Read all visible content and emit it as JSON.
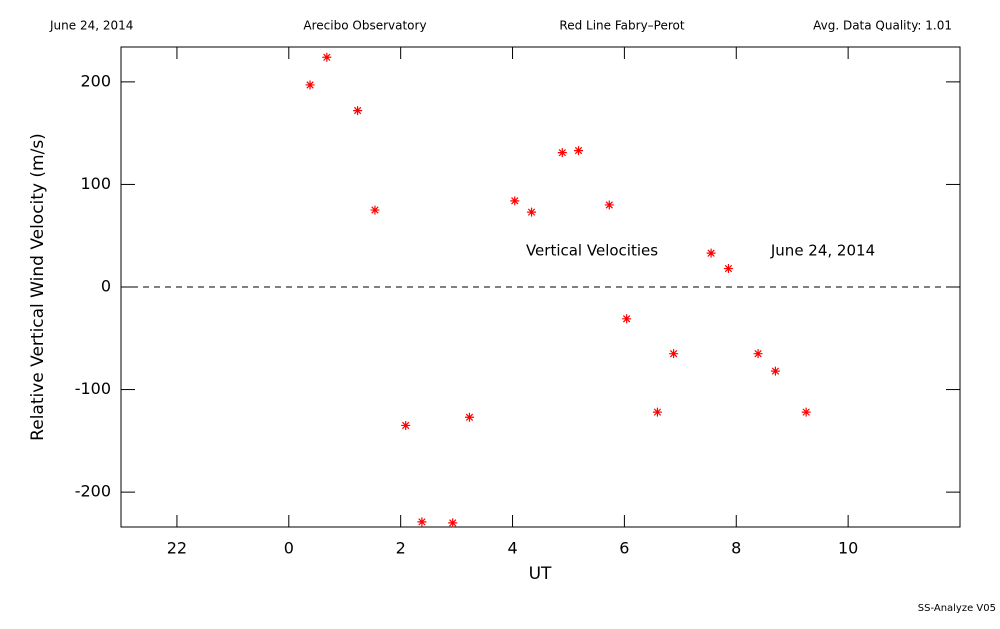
{
  "header": [
    "June 24, 2014",
    "Arecibo Observatory",
    "Red Line Fabry–Perot",
    "Avg. Data Quality: 1.01"
  ],
  "footer": "SS-Analyze V05",
  "chart_data": {
    "type": "scatter",
    "x_label": "UT",
    "y_label": "Relative Vertical Wind Velocity (m/s)",
    "annotations": [
      "Vertical Velocities",
      "June 24, 2014"
    ],
    "x": [
      0.38,
      0.68,
      1.23,
      1.54,
      2.09,
      2.38,
      2.93,
      3.23,
      4.04,
      4.34,
      4.89,
      5.18,
      5.73,
      6.04,
      6.59,
      6.88,
      7.55,
      7.86,
      8.39,
      8.7,
      9.25
    ],
    "values": [
      197,
      224,
      172,
      75,
      -135,
      -229,
      -230,
      -127,
      84,
      73,
      131,
      133,
      80,
      -31,
      -122,
      -65,
      33,
      18,
      -65,
      -82,
      -122
    ],
    "color": "#ff0000",
    "marker": "asterisk",
    "xlim": [
      -3,
      12
    ],
    "xticks": [
      {
        "value": -2,
        "label": "22"
      },
      0,
      2,
      4,
      6,
      8,
      10
    ],
    "ylim": [
      -234,
      234
    ],
    "yticks": [
      -200,
      -100,
      0,
      100,
      200
    ],
    "reference_line": {
      "y": 0,
      "style": "dashed"
    }
  }
}
